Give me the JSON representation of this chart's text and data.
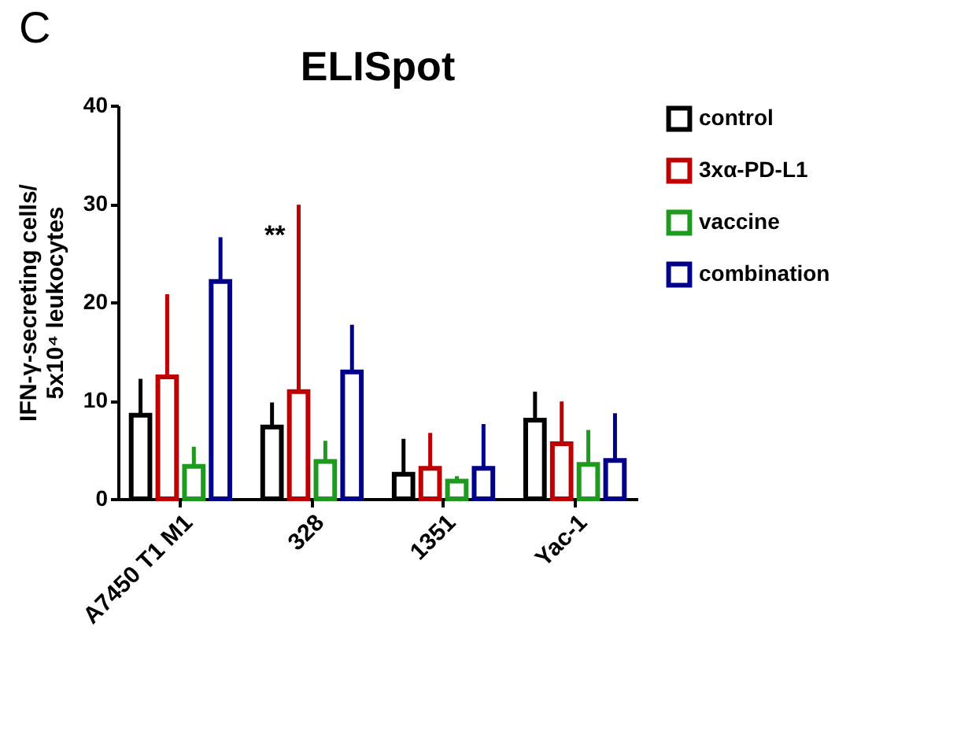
{
  "chart_data": {
    "type": "bar",
    "title": "ELISpot",
    "ylabel": "IFN-γ-secreting cells/\n5x10⁴ leukocytes",
    "categories": [
      "A7450 T1 M1",
      "328",
      "1351",
      "Yac-1"
    ],
    "series": [
      {
        "name": "control",
        "color": "#000000",
        "values": [
          8.5,
          7.3,
          2.5,
          8.0
        ],
        "errors": [
          [
            8.5,
            12.2
          ],
          [
            7.3,
            9.8
          ],
          [
            2.5,
            6.1
          ],
          [
            8.0,
            10.9
          ]
        ]
      },
      {
        "name": "3xα-PD-L1",
        "color": "#c00000",
        "values": [
          12.4,
          10.9,
          3.1,
          5.6
        ],
        "errors": [
          [
            12.4,
            20.8
          ],
          [
            10.9,
            29.9
          ],
          [
            3.1,
            6.7
          ],
          [
            5.6,
            9.9
          ]
        ]
      },
      {
        "name": "vaccine",
        "color": "#1e9a1e",
        "values": [
          3.3,
          3.8,
          1.8,
          3.5
        ],
        "errors": [
          [
            3.3,
            5.3
          ],
          [
            3.8,
            5.9
          ],
          [
            1.8,
            2.3
          ],
          [
            3.5,
            7.0
          ]
        ]
      },
      {
        "name": "combination",
        "color": "#00008b",
        "values": [
          22.1,
          12.9,
          3.1,
          3.9
        ],
        "errors": [
          [
            22.1,
            26.6
          ],
          [
            12.9,
            17.7
          ],
          [
            3.1,
            7.6
          ],
          [
            3.9,
            8.7
          ]
        ]
      }
    ],
    "ylim": [
      0,
      40
    ],
    "yticks": [
      0,
      10,
      20,
      30,
      40
    ],
    "grid": false,
    "legend": "top right",
    "annotations": [
      "C",
      "**"
    ]
  }
}
